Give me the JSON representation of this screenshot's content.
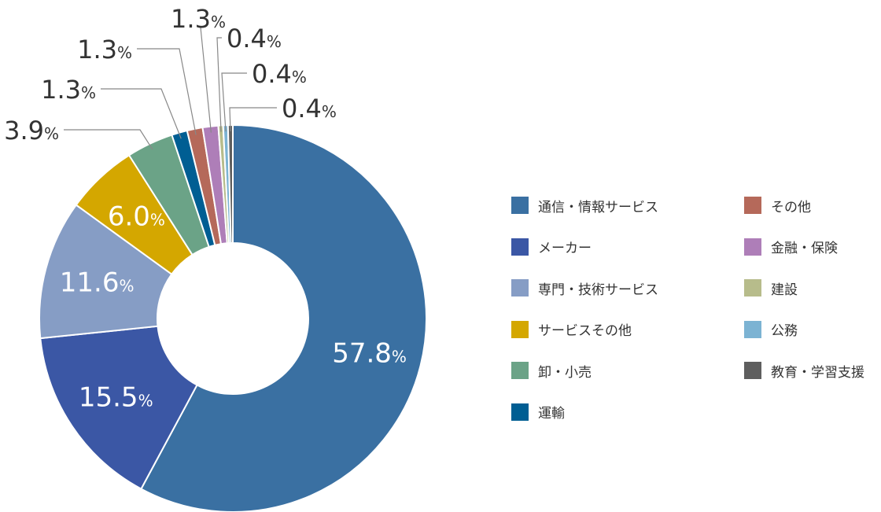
{
  "chart_data": {
    "type": "pie",
    "donut": true,
    "unit": "%",
    "legend_position": "right",
    "slices": [
      {
        "label": "通信・情報サービス",
        "value": 57.8,
        "display": "57.8",
        "color": "#3a70a2"
      },
      {
        "label": "メーカー",
        "value": 15.5,
        "display": "15.5",
        "color": "#3b57a5"
      },
      {
        "label": "専門・技術サービス",
        "value": 11.6,
        "display": "11.6",
        "color": "#869dc5"
      },
      {
        "label": "サービスその他",
        "value": 6.0,
        "display": "6.0",
        "color": "#d4a700"
      },
      {
        "label": "卸・小売",
        "value": 3.9,
        "display": "3.9",
        "color": "#6ba387"
      },
      {
        "label": "運輸",
        "value": 1.3,
        "display": "1.3",
        "color": "#005e93"
      },
      {
        "label": "その他",
        "value": 1.3,
        "display": "1.3",
        "color": "#b5695a"
      },
      {
        "label": "金融・保険",
        "value": 1.3,
        "display": "1.3",
        "color": "#ae7eb8"
      },
      {
        "label": "建設",
        "value": 0.4,
        "display": "0.4",
        "color": "#b7bc8b"
      },
      {
        "label": "公務",
        "value": 0.4,
        "display": "0.4",
        "color": "#7cb3d3"
      },
      {
        "label": "教育・学習支援",
        "value": 0.4,
        "display": "0.4",
        "color": "#5e5e5e"
      }
    ]
  }
}
